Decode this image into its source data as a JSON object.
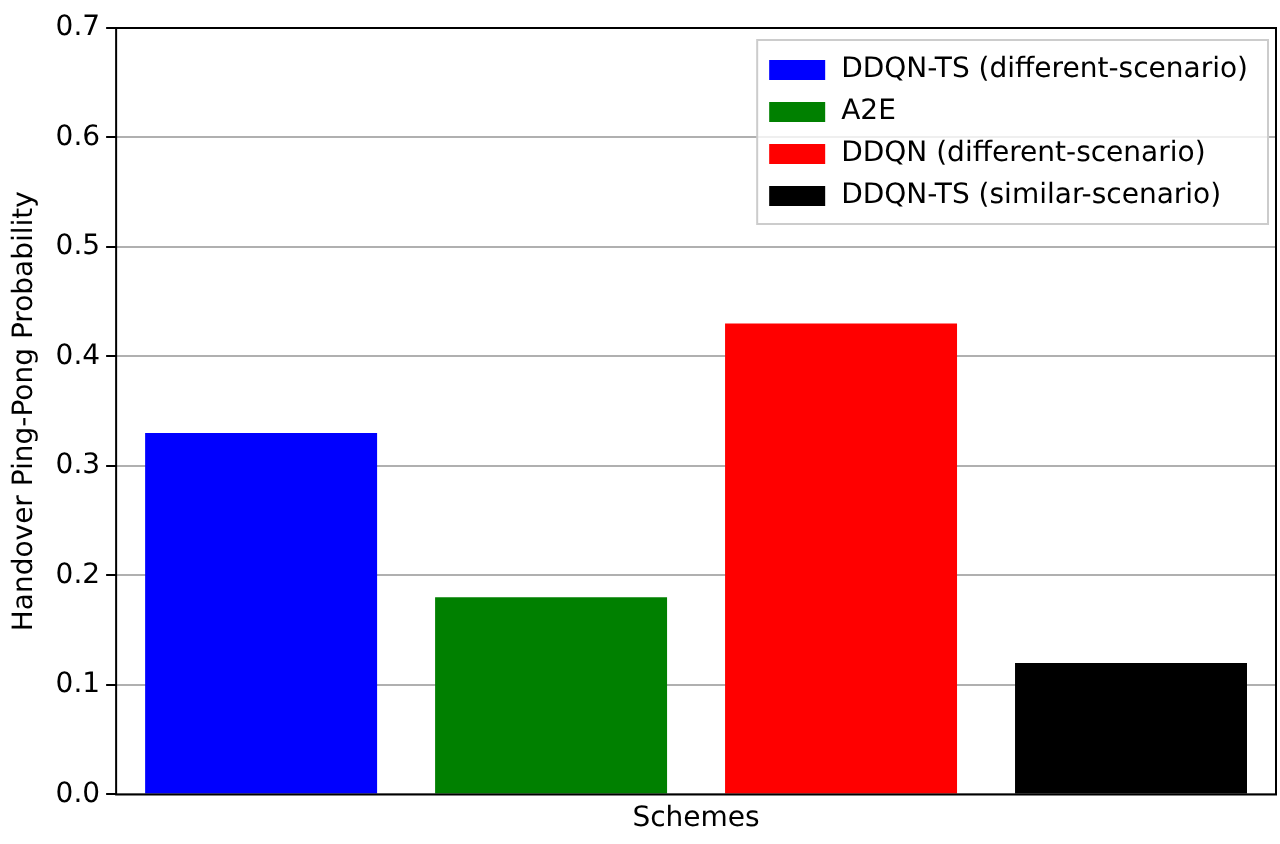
{
  "chart_data": {
    "type": "bar",
    "xlabel": "Schemes",
    "ylabel": "Handover Ping-Pong Probability",
    "categories": [
      null,
      null,
      null,
      null
    ],
    "series": [
      {
        "name": "DDQN-TS (different-scenario)",
        "color": "#0000ff",
        "values": [
          0.33,
          null,
          null,
          null
        ]
      },
      {
        "name": "A2E",
        "color": "#008000",
        "values": [
          null,
          0.18,
          null,
          null
        ]
      },
      {
        "name": "DDQN (different-scenario)",
        "color": "#ff0000",
        "values": [
          null,
          null,
          0.43,
          null
        ]
      },
      {
        "name": "DDQN-TS (similar-scenario)",
        "color": "#000000",
        "values": [
          null,
          null,
          null,
          0.12
        ]
      }
    ],
    "ylim": [
      0,
      0.7
    ],
    "yticks": [
      {
        "value": 0,
        "label": "0.0"
      },
      0.1,
      0.2,
      0.3,
      0.4,
      0.5,
      0.6,
      0.7
    ],
    "grid": "y",
    "legend": "top right",
    "tick_labels": "y"
  }
}
